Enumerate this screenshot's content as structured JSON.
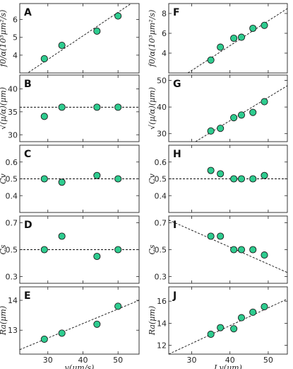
{
  "chart_data": [
    {
      "id": "A",
      "panel_label": "A",
      "type": "scatter",
      "ylabel": "f0/α(10³μm²/s)",
      "x": [
        29,
        34,
        44,
        50
      ],
      "y": [
        3.8,
        4.55,
        5.35,
        6.2
      ],
      "xlim": [
        22,
        56
      ],
      "ylim": [
        3.0,
        6.9
      ],
      "xticks": [
        30,
        40,
        50
      ],
      "yticks": [
        4,
        5,
        6
      ],
      "fit": [
        [
          22,
          2.7
        ],
        [
          56,
          7.2
        ]
      ],
      "show_xticklabels": false
    },
    {
      "id": "B",
      "panel_label": "B",
      "type": "scatter",
      "ylabel": "√(μ/α)(μm)",
      "x": [
        29,
        34,
        44,
        50
      ],
      "y": [
        34,
        36,
        36,
        36
      ],
      "xlim": [
        22,
        56
      ],
      "ylim": [
        28.5,
        43
      ],
      "xticks": [
        30,
        40,
        50
      ],
      "yticks": [
        30,
        35,
        40
      ],
      "fit": [
        [
          22,
          36
        ],
        [
          56,
          36
        ]
      ],
      "show_xticklabels": false
    },
    {
      "id": "C",
      "panel_label": "C",
      "type": "scatter",
      "ylabel": "Cv",
      "x": [
        29,
        34,
        44,
        50
      ],
      "y": [
        0.5,
        0.48,
        0.52,
        0.5
      ],
      "xlim": [
        22,
        56
      ],
      "ylim": [
        0.3,
        0.7
      ],
      "xticks": [
        30,
        40,
        50
      ],
      "yticks": [
        0.4,
        0.5,
        0.6
      ],
      "fit": [
        [
          22,
          0.5
        ],
        [
          56,
          0.5
        ]
      ],
      "show_xticklabels": false
    },
    {
      "id": "D",
      "panel_label": "D",
      "type": "scatter",
      "ylabel": "Cs",
      "x": [
        29,
        34,
        44,
        50
      ],
      "y": [
        0.5,
        0.6,
        0.45,
        0.5
      ],
      "xlim": [
        22,
        56
      ],
      "ylim": [
        0.25,
        0.75
      ],
      "xticks": [
        30,
        40,
        50
      ],
      "yticks": [
        0.3,
        0.5,
        0.7
      ],
      "fit": [
        [
          22,
          0.5
        ],
        [
          56,
          0.5
        ]
      ],
      "show_xticklabels": false
    },
    {
      "id": "E",
      "panel_label": "E",
      "type": "scatter",
      "ylabel": "Ra(μm)",
      "xlabel": "v(μm/s)",
      "x": [
        29,
        34,
        44,
        50
      ],
      "y": [
        12.7,
        12.9,
        13.2,
        13.8
      ],
      "xlim": [
        22,
        56
      ],
      "ylim": [
        12.2,
        14.45
      ],
      "xticks": [
        30,
        40,
        50
      ],
      "yticks": [
        13,
        14
      ],
      "fit": [
        [
          22,
          12.35
        ],
        [
          56,
          14.0
        ]
      ],
      "show_xticklabels": true
    },
    {
      "id": "F",
      "panel_label": "F",
      "type": "scatter",
      "ylabel": "f0/α(10³μm²/s)",
      "x": [
        35,
        37.5,
        41,
        43,
        46,
        49
      ],
      "y": [
        3.3,
        4.6,
        5.5,
        5.6,
        6.5,
        6.8
      ],
      "xlim": [
        24,
        55
      ],
      "ylim": [
        2.0,
        9.0
      ],
      "xticks": [
        30,
        40,
        50
      ],
      "yticks": [
        4,
        6,
        8
      ],
      "fit": [
        [
          29,
          2.0
        ],
        [
          55,
          8.5
        ]
      ],
      "show_xticklabels": false
    },
    {
      "id": "G",
      "panel_label": "G",
      "type": "scatter",
      "ylabel": "√(μ/α)(μm)",
      "x": [
        35,
        37.5,
        41,
        43,
        46,
        49
      ],
      "y": [
        31,
        32,
        36,
        37,
        38,
        42
      ],
      "xlim": [
        24,
        55
      ],
      "ylim": [
        27,
        52
      ],
      "xticks": [
        30,
        40,
        50
      ],
      "yticks": [
        30,
        40,
        50
      ],
      "fit": [
        [
          31,
          27
        ],
        [
          55,
          48
        ]
      ],
      "show_xticklabels": false
    },
    {
      "id": "H",
      "panel_label": "H",
      "type": "scatter",
      "ylabel": "Cv",
      "x": [
        35,
        37.5,
        41,
        43,
        46,
        49
      ],
      "y": [
        0.55,
        0.53,
        0.5,
        0.5,
        0.5,
        0.52
      ],
      "xlim": [
        24,
        55
      ],
      "ylim": [
        0.3,
        0.7
      ],
      "xticks": [
        30,
        40,
        50
      ],
      "yticks": [
        0.4,
        0.5,
        0.6
      ],
      "fit": [
        [
          24,
          0.5
        ],
        [
          55,
          0.5
        ]
      ],
      "show_xticklabels": false
    },
    {
      "id": "I",
      "panel_label": "I",
      "type": "scatter",
      "ylabel": "Cs",
      "x": [
        35,
        37.5,
        41,
        43,
        46,
        49
      ],
      "y": [
        0.6,
        0.6,
        0.5,
        0.5,
        0.5,
        0.46
      ],
      "xlim": [
        24,
        55
      ],
      "ylim": [
        0.25,
        0.75
      ],
      "xticks": [
        30,
        40,
        50
      ],
      "yticks": [
        0.3,
        0.5,
        0.7
      ],
      "fit": [
        [
          24,
          0.72
        ],
        [
          55,
          0.33
        ]
      ],
      "show_xticklabels": false
    },
    {
      "id": "J",
      "panel_label": "J",
      "type": "scatter",
      "ylabel": "Ra(μm)",
      "xlabel": "Lv(μm)",
      "x": [
        35,
        37.5,
        41,
        43,
        46,
        49
      ],
      "y": [
        13.0,
        13.6,
        13.5,
        14.5,
        15.0,
        15.5
      ],
      "xlim": [
        24,
        55
      ],
      "ylim": [
        11.2,
        17.3
      ],
      "xticks": [
        30,
        40,
        50
      ],
      "yticks": [
        12,
        14,
        16
      ],
      "fit": [
        [
          24,
          11.2
        ],
        [
          55,
          16.2
        ]
      ],
      "show_xticklabels": true
    }
  ],
  "colors": {
    "marker_fill": "#2ecc8f",
    "marker_edge": "#1a1a1a",
    "fit_line": "#111111"
  }
}
